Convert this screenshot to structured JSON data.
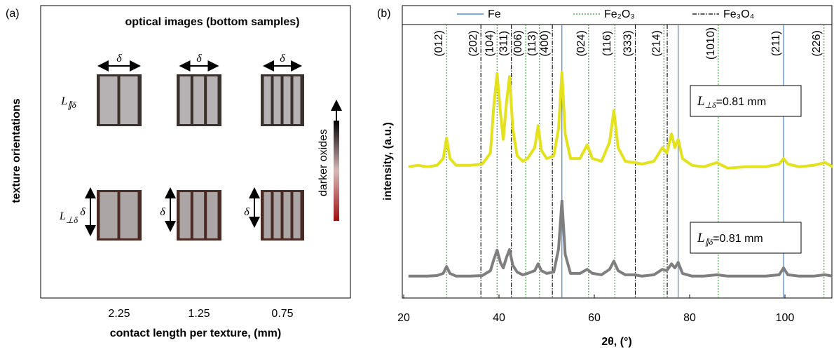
{
  "chart_data": [
    {
      "type": "image-grid",
      "panel_label": "(a)",
      "title": "optical images (bottom samples)",
      "ylabel": "texture orientations",
      "xlabel": "contact length per texture, (mm)",
      "categories": [
        "2.25",
        "1.25",
        "0.75"
      ],
      "rows": [
        {
          "symbol": "L",
          "sub": "∥δ"
        },
        {
          "symbol": "L",
          "sub": "⊥δ"
        }
      ],
      "delta": "δ",
      "colorbar_label": "darker oxides"
    },
    {
      "type": "line",
      "panel_label": "(b)",
      "xlabel": "2θ, (°)",
      "ylabel": "intensity, (a.u.)",
      "xlim": [
        20,
        110
      ],
      "xticks": [
        20,
        40,
        60,
        80,
        100
      ],
      "ylim": [
        0,
        100
      ],
      "x": [
        21,
        23,
        25,
        27,
        28.3,
        29.0,
        29.7,
        31,
        34,
        36.5,
        38.2,
        38.9,
        39.6,
        40.3,
        40.9,
        41.6,
        42.2,
        42.9,
        43.8,
        45.0,
        46,
        47.5,
        48.2,
        48.9,
        50,
        51.5,
        52.5,
        53.2,
        53.9,
        55,
        57,
        58.5,
        59.6,
        61.5,
        63.2,
        64.1,
        65,
        66.5,
        68.4,
        70,
        72.5,
        74.3,
        75.2,
        76.2,
        76.9,
        77.6,
        78.5,
        80.5,
        83,
        85.7,
        88,
        92,
        96,
        98.8,
        99.7,
        100.6,
        103,
        106,
        108.4,
        110
      ],
      "series": [
        {
          "name": "L⊥δ=0.81 mm",
          "color": "#e3e21c",
          "values": [
            48,
            48.5,
            48,
            48.5,
            51,
            58.5,
            51,
            48.5,
            48.5,
            49,
            53,
            70,
            82,
            68,
            58,
            72,
            81,
            62,
            52,
            50,
            51,
            55,
            63,
            54,
            51,
            52,
            62,
            82.5,
            60,
            51,
            51,
            56,
            51,
            50,
            57,
            68.5,
            55,
            50,
            49.5,
            49,
            50,
            55,
            53,
            60,
            55,
            58,
            51,
            48.5,
            48,
            49.5,
            47.5,
            48,
            48,
            49,
            51,
            49,
            48,
            48.5,
            49.5,
            48
          ]
        },
        {
          "name": "L∥δ=0.81 mm",
          "color": "#7f7f7f",
          "values": [
            8,
            8,
            8,
            8.2,
            9,
            11.5,
            9,
            8,
            8,
            8.2,
            10,
            14,
            17.5,
            13,
            11,
            15,
            17.7,
            12,
            9.5,
            8.5,
            9,
            10,
            12.5,
            10,
            9,
            9.5,
            18,
            35.5,
            16,
            9,
            9,
            10.5,
            9,
            8.5,
            10.5,
            13.5,
            10,
            8.5,
            8.5,
            8,
            8.5,
            10.5,
            10,
            12.5,
            11,
            13,
            9,
            8,
            8,
            8.5,
            8,
            8,
            8,
            8.5,
            11,
            8.5,
            8,
            8,
            8.5,
            8
          ]
        }
      ],
      "phases": [
        {
          "name": "Fe",
          "color": "#2f7bd8",
          "dash": "solid"
        },
        {
          "name": "Fe₂O₃",
          "color": "#2ca02c",
          "dash": "dotted"
        },
        {
          "name": "Fe₃O₄",
          "color": "#000000",
          "dash": "dashdot"
        }
      ],
      "reference_lines": [
        {
          "x": 29.0,
          "label": "(012)",
          "phase": 1
        },
        {
          "x": 36.2,
          "label": "(202)",
          "phase": 2
        },
        {
          "x": 39.6,
          "label": "(104)",
          "phase": 1
        },
        {
          "x": 42.6,
          "label": "(311)",
          "phase": 2
        },
        {
          "x": 45.6,
          "label": "(006)",
          "phase": 1
        },
        {
          "x": 48.5,
          "label": "(113)",
          "phase": 1
        },
        {
          "x": 51.2,
          "label": "(400)",
          "phase": 2
        },
        {
          "x": 53.2,
          "label": null,
          "phase": 0
        },
        {
          "x": 58.8,
          "label": "(024)",
          "phase": 1
        },
        {
          "x": 64.3,
          "label": "(116)",
          "phase": 1
        },
        {
          "x": 68.6,
          "label": "(333)",
          "phase": 2
        },
        {
          "x": 74.6,
          "label": "(214)",
          "phase": 1
        },
        {
          "x": 75.3,
          "label": null,
          "phase": 2
        },
        {
          "x": 77.6,
          "label": null,
          "phase": 0
        },
        {
          "x": 86.0,
          "label": "(1010)",
          "phase": 1
        },
        {
          "x": 99.7,
          "label": "(211)",
          "phase": 0
        },
        {
          "x": 108.2,
          "label": "(226)",
          "phase": 1
        }
      ],
      "annotations": [
        {
          "symbol": "L",
          "sub": "⊥δ",
          "text": "=0.81 mm",
          "series": 0
        },
        {
          "symbol": "L",
          "sub": "∥δ",
          "text": "=0.81 mm",
          "series": 1
        }
      ]
    }
  ]
}
